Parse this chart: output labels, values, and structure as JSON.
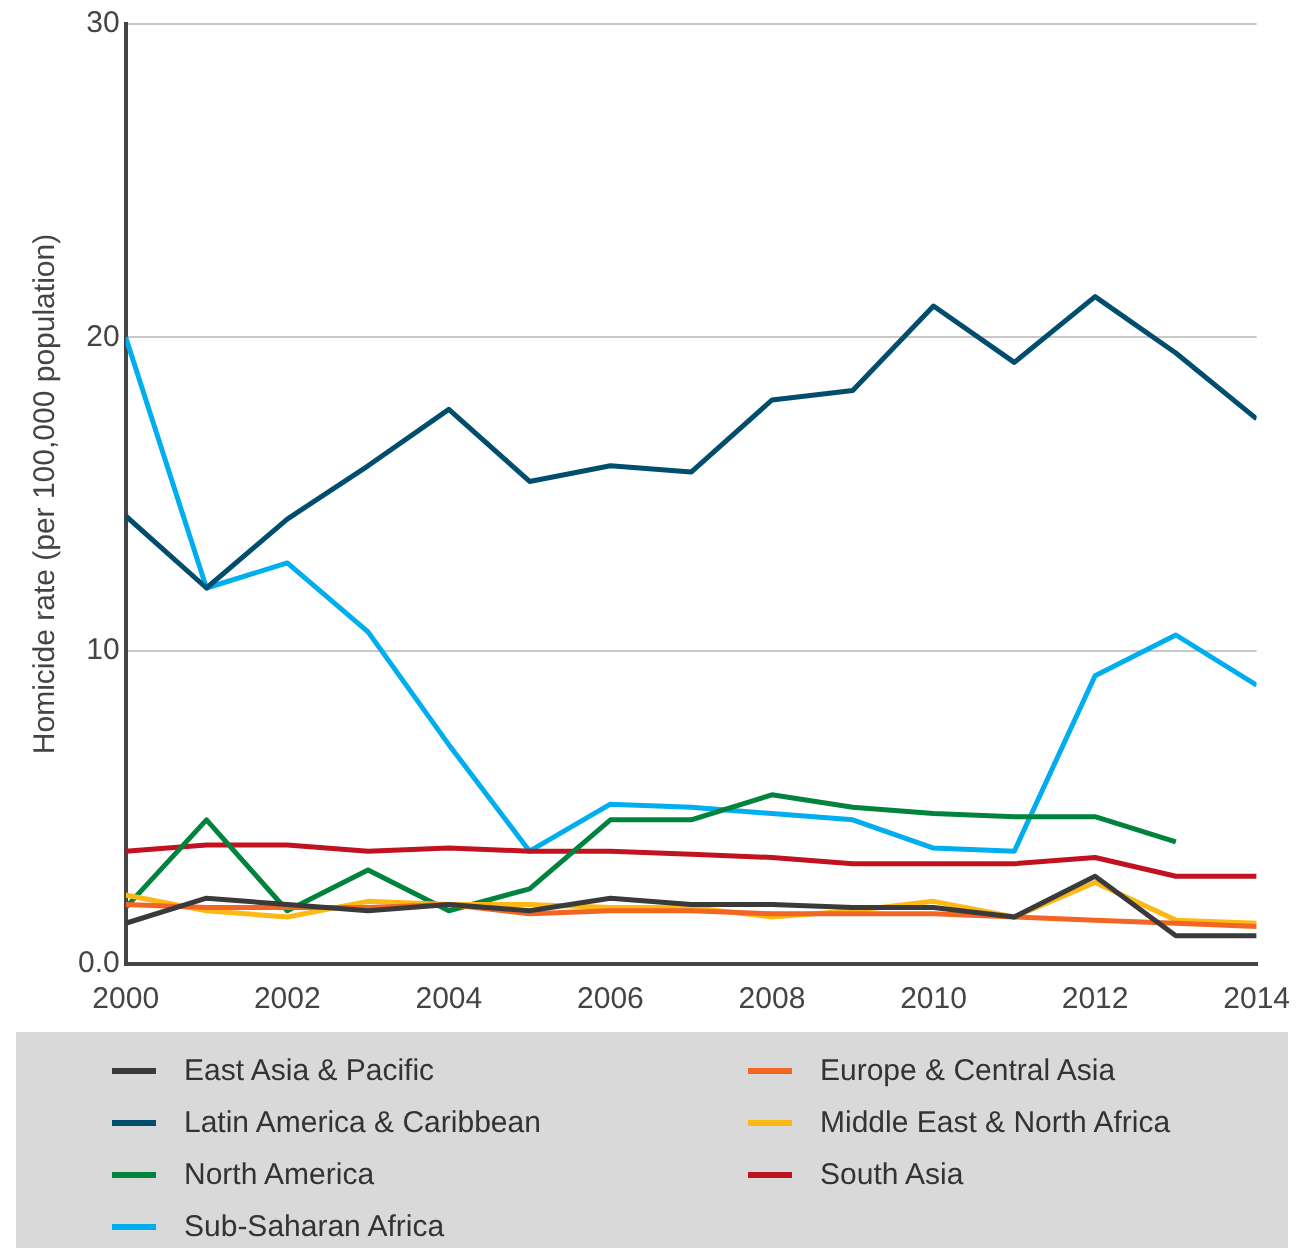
{
  "chart_data": {
    "type": "line",
    "ylabel": "Homicide rate (per 100,000 population)",
    "x": [
      2000,
      2001,
      2002,
      2003,
      2004,
      2005,
      2006,
      2007,
      2008,
      2009,
      2010,
      2011,
      2012,
      2013,
      2014
    ],
    "xlim": [
      2000,
      2014
    ],
    "xticks": [
      2000,
      2002,
      2004,
      2006,
      2008,
      2010,
      2012,
      2014
    ],
    "ylim": [
      0,
      30
    ],
    "yticks": [
      {
        "value": 0,
        "label": "0.0"
      },
      10,
      20,
      30
    ],
    "grid": "y",
    "legend": "bottom",
    "marker": "none",
    "line_style": "solid",
    "series": [
      {
        "name": "East Asia & Pacific",
        "color": "#3a3a3a",
        "values": [
          1.3,
          2.1,
          1.9,
          1.7,
          1.9,
          1.7,
          2.1,
          1.9,
          1.9,
          1.8,
          1.8,
          1.5,
          2.8,
          0.9,
          0.9
        ]
      },
      {
        "name": "Europe & Central Asia",
        "color": "#f26522",
        "values": [
          1.9,
          1.8,
          1.8,
          1.8,
          1.9,
          1.6,
          1.7,
          1.7,
          1.6,
          1.6,
          1.6,
          1.5,
          1.4,
          1.3,
          1.2
        ]
      },
      {
        "name": "Latin America & Caribbean",
        "color": "#004d6e",
        "values": [
          14.3,
          12.0,
          14.2,
          15.9,
          17.7,
          15.4,
          15.9,
          15.7,
          18.0,
          18.3,
          21.0,
          19.2,
          21.3,
          19.5,
          17.4
        ]
      },
      {
        "name": "Middle East & North Africa",
        "color": "#fdb813",
        "values": [
          2.2,
          1.7,
          1.5,
          2.0,
          1.9,
          1.9,
          1.8,
          1.8,
          1.5,
          1.7,
          2.0,
          1.5,
          2.6,
          1.4,
          1.3
        ]
      },
      {
        "name": "North America",
        "color": "#00843d",
        "values": [
          1.8,
          4.6,
          1.7,
          3.0,
          1.7,
          2.4,
          4.6,
          4.6,
          5.4,
          5.0,
          4.8,
          4.7,
          4.7,
          3.9,
          null
        ]
      },
      {
        "name": "South Asia",
        "color": "#c1121f",
        "values": [
          3.6,
          3.8,
          3.8,
          3.6,
          3.7,
          3.6,
          3.6,
          3.5,
          3.4,
          3.2,
          3.2,
          3.2,
          3.4,
          2.8,
          2.8
        ]
      },
      {
        "name": "Sub-Saharan Africa",
        "color": "#00aeef",
        "values": [
          20.0,
          12.0,
          12.8,
          10.6,
          7.0,
          3.6,
          5.1,
          5.0,
          4.8,
          4.6,
          3.7,
          3.6,
          9.2,
          10.5,
          8.9
        ]
      }
    ]
  }
}
